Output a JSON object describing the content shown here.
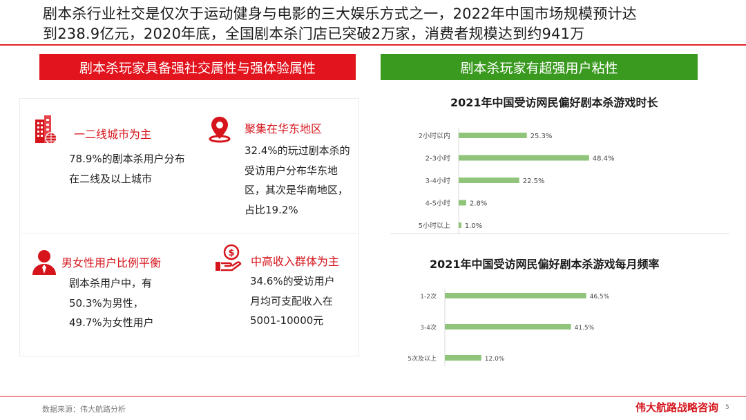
{
  "headline": {
    "line1": "剧本杀行业社交是仅次于运动健身与电影的三大娱乐方式之一，2022年中国市场规模预计达",
    "line2": "到238.9亿元，2020年底，全国剧本杀门店已突破2万家，消费者规模达到约941万"
  },
  "left_banner": "剧本杀玩家具备强社交属性与强体验属性",
  "right_banner": "剧本杀玩家有超强用户粘性",
  "features": [
    {
      "icon": "city-buildings-icon",
      "title": "一二线城市为主",
      "lines": [
        "78.9%的剧本杀用户分布",
        "在二线及以上城市"
      ]
    },
    {
      "icon": "location-pin-icon",
      "title": "聚集在华东地区",
      "lines": [
        "32.4%的玩过剧本杀的",
        "受访用户分布华东地",
        "区，其次是华南地区，",
        "占比19.2%"
      ]
    },
    {
      "icon": "user-icon",
      "title": "男女性用户比例平衡",
      "lines": [
        "剧本杀用户中，有",
        "50.3%为男性，",
        "49.7%为女性用户"
      ]
    },
    {
      "icon": "money-hand-icon",
      "title": "中高收入群体为主",
      "lines": [
        "34.6%的受访用户",
        "月均可支配收入在",
        "5001-10000元"
      ]
    }
  ],
  "colors": {
    "accent_red": "#e2141d",
    "accent_green": "#3a9a1f",
    "bar_green": "#8fc47a"
  },
  "chart_data": [
    {
      "type": "bar",
      "orientation": "horizontal",
      "title": "2021年中国受访网民偏好剧本杀游戏时长",
      "categories": [
        "2小时以内",
        "2-3小时",
        "3-4小时",
        "4-5小时",
        "5小时以上"
      ],
      "values": [
        25.3,
        48.4,
        22.5,
        2.8,
        1.0
      ],
      "labels": [
        "25.3%",
        "48.4%",
        "22.5%",
        "2.8%",
        "1.0%"
      ],
      "unit": "%",
      "grid": false
    },
    {
      "type": "bar",
      "orientation": "horizontal",
      "title": "2021年中国受访网民偏好剧本杀游戏每月频率",
      "categories": [
        "1-2次",
        "3-4次",
        "5次及以上"
      ],
      "values": [
        46.5,
        41.5,
        12.0
      ],
      "labels": [
        "46.5%",
        "41.5%",
        "12.0%"
      ],
      "unit": "%",
      "grid": false
    }
  ],
  "footer": {
    "source": "数据来源：伟大航路分析",
    "brand": "伟大航路战略咨询",
    "page": "5"
  }
}
